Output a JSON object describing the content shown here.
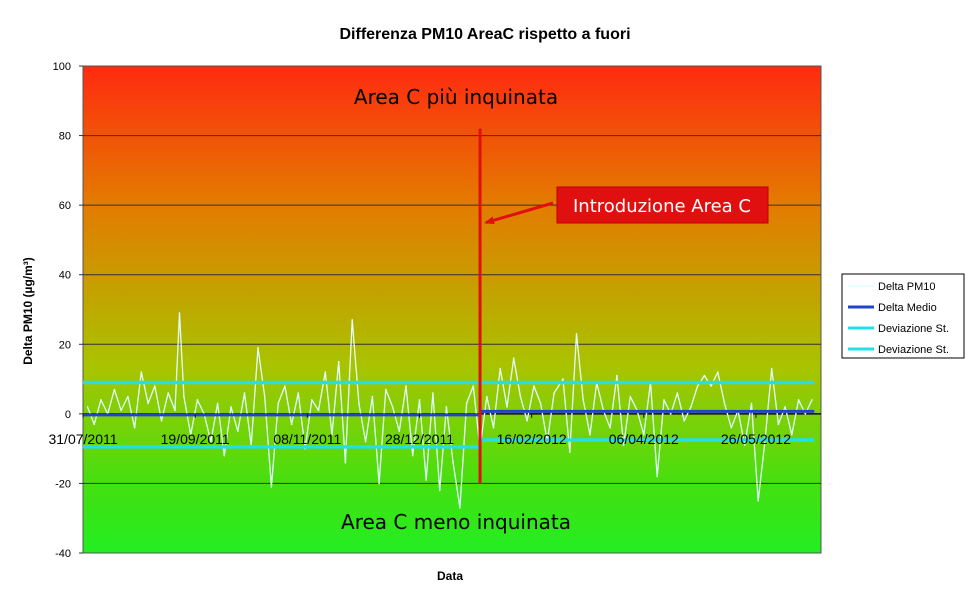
{
  "chart_data": {
    "type": "line",
    "title": "Differenza PM10 AreaC rispetto a fuori",
    "xlabel": "Data",
    "ylabel": "Delta PM10 (µg/m³)",
    "ylim": [
      -40,
      100
    ],
    "yticks": [
      -40,
      -20,
      0,
      20,
      40,
      60,
      80,
      100
    ],
    "xlim": [
      "2011-07-31",
      "2012-06-24"
    ],
    "xticks": [
      {
        "date": "2011-07-31",
        "label": "31/07/2011"
      },
      {
        "date": "2011-09-19",
        "label": "19/09/2011"
      },
      {
        "date": "2011-11-08",
        "label": "08/11/2011"
      },
      {
        "date": "2011-12-28",
        "label": "28/12/2011"
      },
      {
        "date": "2012-02-16",
        "label": "16/02/2012"
      },
      {
        "date": "2012-04-06",
        "label": "06/04/2012"
      },
      {
        "date": "2012-05-26",
        "label": "26/05/2012"
      }
    ],
    "grid": true,
    "legend_position": "right",
    "background_gradient": [
      "#ff2a10",
      "#e47a00",
      "#a8c400",
      "#44e010",
      "#22ee22"
    ],
    "series": [
      {
        "name": "Delta PM10",
        "color": "#e0ffff",
        "points": [
          [
            "2011-08-02",
            2
          ],
          [
            "2011-08-05",
            -3
          ],
          [
            "2011-08-08",
            4
          ],
          [
            "2011-08-11",
            0
          ],
          [
            "2011-08-14",
            7
          ],
          [
            "2011-08-17",
            1
          ],
          [
            "2011-08-20",
            5
          ],
          [
            "2011-08-23",
            -4
          ],
          [
            "2011-08-26",
            12
          ],
          [
            "2011-08-29",
            3
          ],
          [
            "2011-09-01",
            8
          ],
          [
            "2011-09-04",
            -2
          ],
          [
            "2011-09-07",
            6
          ],
          [
            "2011-09-10",
            1
          ],
          [
            "2011-09-12",
            29
          ],
          [
            "2011-09-14",
            5
          ],
          [
            "2011-09-17",
            -6
          ],
          [
            "2011-09-20",
            4
          ],
          [
            "2011-09-23",
            0
          ],
          [
            "2011-09-26",
            -8
          ],
          [
            "2011-09-29",
            3
          ],
          [
            "2011-10-02",
            -12
          ],
          [
            "2011-10-05",
            2
          ],
          [
            "2011-10-08",
            -5
          ],
          [
            "2011-10-11",
            6
          ],
          [
            "2011-10-14",
            -9
          ],
          [
            "2011-10-17",
            19
          ],
          [
            "2011-10-20",
            5
          ],
          [
            "2011-10-23",
            -21
          ],
          [
            "2011-10-26",
            3
          ],
          [
            "2011-10-29",
            8
          ],
          [
            "2011-11-01",
            -3
          ],
          [
            "2011-11-04",
            6
          ],
          [
            "2011-11-07",
            -10
          ],
          [
            "2011-11-10",
            4
          ],
          [
            "2011-11-13",
            1
          ],
          [
            "2011-11-16",
            12
          ],
          [
            "2011-11-19",
            -6
          ],
          [
            "2011-11-22",
            15
          ],
          [
            "2011-11-25",
            -14
          ],
          [
            "2011-11-28",
            27
          ],
          [
            "2011-12-01",
            3
          ],
          [
            "2011-12-04",
            -8
          ],
          [
            "2011-12-07",
            5
          ],
          [
            "2011-12-10",
            -20
          ],
          [
            "2011-12-13",
            7
          ],
          [
            "2011-12-16",
            2
          ],
          [
            "2011-12-19",
            -5
          ],
          [
            "2011-12-22",
            8
          ],
          [
            "2011-12-25",
            -12
          ],
          [
            "2011-12-28",
            4
          ],
          [
            "2011-12-31",
            -19
          ],
          [
            "2012-01-03",
            6
          ],
          [
            "2012-01-06",
            -22
          ],
          [
            "2012-01-09",
            2
          ],
          [
            "2012-01-12",
            -14
          ],
          [
            "2012-01-15",
            -27
          ],
          [
            "2012-01-18",
            3
          ],
          [
            "2012-01-21",
            8
          ],
          [
            "2012-01-24",
            -10
          ],
          [
            "2012-01-27",
            5
          ],
          [
            "2012-01-30",
            -4
          ],
          [
            "2012-02-02",
            13
          ],
          [
            "2012-02-05",
            2
          ],
          [
            "2012-02-08",
            16
          ],
          [
            "2012-02-11",
            5
          ],
          [
            "2012-02-14",
            -2
          ],
          [
            "2012-02-17",
            8
          ],
          [
            "2012-02-20",
            3
          ],
          [
            "2012-02-23",
            -8
          ],
          [
            "2012-02-26",
            6
          ],
          [
            "2012-03-01",
            10
          ],
          [
            "2012-03-04",
            -11
          ],
          [
            "2012-03-07",
            23
          ],
          [
            "2012-03-10",
            4
          ],
          [
            "2012-03-13",
            -6
          ],
          [
            "2012-03-16",
            9
          ],
          [
            "2012-03-19",
            1
          ],
          [
            "2012-03-22",
            -4
          ],
          [
            "2012-03-25",
            11
          ],
          [
            "2012-03-28",
            -9
          ],
          [
            "2012-03-31",
            5
          ],
          [
            "2012-04-03",
            1
          ],
          [
            "2012-04-06",
            -6
          ],
          [
            "2012-04-09",
            9
          ],
          [
            "2012-04-12",
            -18
          ],
          [
            "2012-04-15",
            4
          ],
          [
            "2012-04-18",
            0
          ],
          [
            "2012-04-21",
            6
          ],
          [
            "2012-04-24",
            -2
          ],
          [
            "2012-04-27",
            2
          ],
          [
            "2012-04-30",
            8
          ],
          [
            "2012-05-03",
            11
          ],
          [
            "2012-05-06",
            8
          ],
          [
            "2012-05-09",
            12
          ],
          [
            "2012-05-12",
            3
          ],
          [
            "2012-05-15",
            -4
          ],
          [
            "2012-05-18",
            1
          ],
          [
            "2012-05-21",
            -9
          ],
          [
            "2012-05-24",
            3
          ],
          [
            "2012-05-27",
            -25
          ],
          [
            "2012-05-30",
            -8
          ],
          [
            "2012-06-02",
            13
          ],
          [
            "2012-06-05",
            -3
          ],
          [
            "2012-06-08",
            2
          ],
          [
            "2012-06-11",
            -6
          ],
          [
            "2012-06-14",
            4
          ],
          [
            "2012-06-17",
            0
          ],
          [
            "2012-06-20",
            4
          ]
        ]
      },
      {
        "name": "Delta Medio",
        "color": "#2244cc",
        "segments": [
          {
            "from": "2011-07-31",
            "to": "2012-01-24",
            "value": -0.3
          },
          {
            "from": "2012-01-24",
            "to": "2012-06-21",
            "value": 0.7
          }
        ]
      },
      {
        "name": "Deviazione St.",
        "color": "#22e0e8",
        "segments": [
          {
            "from": "2011-07-31",
            "to": "2012-01-24",
            "value": 9
          },
          {
            "from": "2012-01-24",
            "to": "2012-06-21",
            "value": 9
          }
        ]
      },
      {
        "name": "Deviazione St.",
        "color": "#22e0e8",
        "segments": [
          {
            "from": "2011-07-31",
            "to": "2012-01-24",
            "value": -9.5
          },
          {
            "from": "2012-01-24",
            "to": "2012-06-21",
            "value": -7.5
          }
        ]
      }
    ],
    "annotations": {
      "top_zone": "Area C più inquinata",
      "bottom_zone": "Area C meno inquinata",
      "event": {
        "label": "Introduzione Area C",
        "date": "2012-01-24",
        "y_from": -20,
        "y_to": 82,
        "arrow_y": 55
      },
      "event_color": "#e01010"
    }
  }
}
